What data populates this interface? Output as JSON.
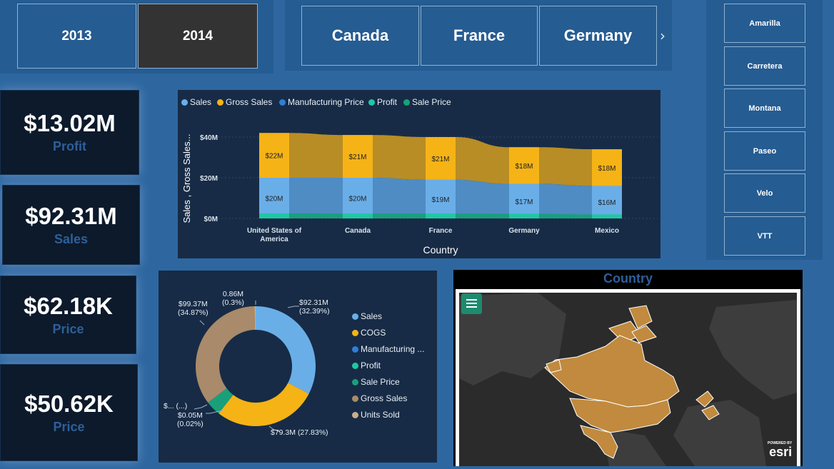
{
  "years": {
    "y2013": "2013",
    "y2014": "2014",
    "selected": "2014"
  },
  "countries": {
    "c1": "Canada",
    "c2": "France",
    "c3": "Germany",
    "next_icon": "chevron-right-icon"
  },
  "products": [
    "Amarilla",
    "Carretera",
    "Montana",
    "Paseo",
    "Velo",
    "VTT"
  ],
  "kpis": [
    {
      "value": "$13.02M",
      "label": "Profit"
    },
    {
      "value": "$92.31M",
      "label": "Sales"
    },
    {
      "value": "$62.18K",
      "label": "Price"
    },
    {
      "value": "$50.62K",
      "label": "Price"
    }
  ],
  "area_chart": {
    "legend": [
      {
        "name": "Sales",
        "color": "#6aaee8"
      },
      {
        "name": "Gross Sales",
        "color": "#f5b316"
      },
      {
        "name": "Manufacturing Price",
        "color": "#2f7ed8"
      },
      {
        "name": "Profit",
        "color": "#1fc7a2"
      },
      {
        "name": "Sale Price",
        "color": "#19a07a"
      }
    ],
    "ylabel": "Sales , Gross Sales...",
    "xlabel": "Country",
    "yticks": [
      "$40M",
      "$20M",
      "$0M"
    ]
  },
  "donut_chart": {
    "legend": [
      {
        "name": "Sales",
        "color": "#6aaee8"
      },
      {
        "name": "COGS",
        "color": "#f5b316"
      },
      {
        "name": "Manufacturing ...",
        "color": "#2f7ed8"
      },
      {
        "name": "Profit",
        "color": "#1fc7a2"
      },
      {
        "name": "Sale Price",
        "color": "#19a07a"
      },
      {
        "name": "Gross Sales",
        "color": "#a98a6a"
      },
      {
        "name": "Units Sold",
        "color": "#c9ae8a"
      }
    ],
    "labels": {
      "sales": [
        "$92.31M",
        "(32.39%)"
      ],
      "cogs": [
        "$79.3M (27.83%)"
      ],
      "profit": [
        "$0.05M",
        "(0.02%)"
      ],
      "trunc": [
        "$... (...)"
      ],
      "gross": [
        "$99.37M",
        "(34.87%)"
      ],
      "units": [
        "0.86M",
        "(0.3%)"
      ]
    }
  },
  "map": {
    "title": "Country",
    "menu_icon": "hamburger-menu-icon",
    "brand_small": "POWERED BY",
    "brand": "esri"
  },
  "chart_data": [
    {
      "type": "area",
      "title": "",
      "xlabel": "Country",
      "ylabel": "Sales , Gross Sales...",
      "categories": [
        "United States of America",
        "Canada",
        "France",
        "Germany",
        "Mexico"
      ],
      "ylim": [
        0,
        50
      ],
      "series": [
        {
          "name": "Sales",
          "values": [
            20,
            20,
            19,
            17,
            16
          ],
          "labels": [
            "$20M",
            "$20M",
            "$19M",
            "$17M",
            "$16M"
          ]
        },
        {
          "name": "Gross Sales",
          "values": [
            22,
            21,
            21,
            18,
            18
          ],
          "labels": [
            "$22M",
            "$21M",
            "$21M",
            "$18M",
            "$18M"
          ]
        },
        {
          "name": "Profit",
          "values": [
            2.5,
            2.4,
            2.4,
            2.3,
            2.0
          ]
        }
      ],
      "stacked": true,
      "legend_position": "top-left"
    },
    {
      "type": "pie",
      "donut": true,
      "slices": [
        {
          "name": "Sales",
          "value": 32.39
        },
        {
          "name": "COGS",
          "value": 27.83
        },
        {
          "name": "Manufacturing ...",
          "value": 0.01
        },
        {
          "name": "Profit",
          "value": 0.02
        },
        {
          "name": "Sale Price",
          "value": 4.0
        },
        {
          "name": "Gross Sales",
          "value": 34.87
        },
        {
          "name": "Units Sold",
          "value": 0.3
        }
      ]
    }
  ]
}
